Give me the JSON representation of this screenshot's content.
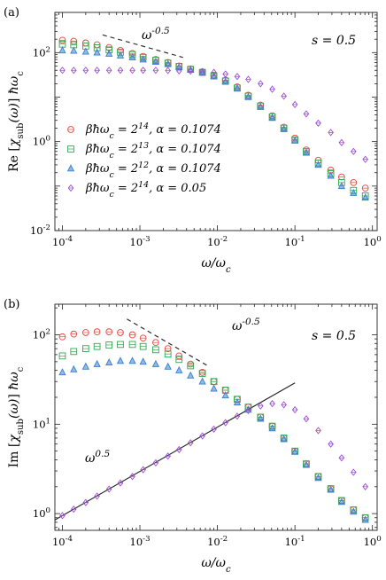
{
  "chart_data": [
    {
      "panel_label": "(a)",
      "type": "scatter",
      "xscale": "log",
      "yscale": "log",
      "xlim": [
        8e-05,
        1.15
      ],
      "ylim": [
        0.01,
        800
      ],
      "xlabel": "ω/ωc",
      "ylabel": "Re[χsub(ω)] ħωc",
      "x_ticks": [
        "10^-4",
        "10^-3",
        "10^-2",
        "10^-1",
        "10^0"
      ],
      "y_ticks": [
        "10^-2",
        "10^0",
        "10^2"
      ],
      "annotations": [
        {
          "text": "s = 0.5",
          "kind": "label"
        },
        {
          "text": "ω^-0.5",
          "kind": "guide-label"
        }
      ],
      "guide_lines": [
        {
          "style": "dashed",
          "x": [
            0.00033,
            0.0036
          ],
          "y": [
            250,
            78
          ]
        }
      ],
      "legend": {
        "position": "center-left"
      },
      "series": [
        {
          "name": "βħωc = 2^14, α = 0.1074",
          "color": "#e8453c",
          "marker": "circle",
          "x": [
            0.0001,
            0.00014,
            0.0002,
            0.00028,
            0.0004,
            0.00056,
            0.0008,
            0.0011,
            0.0016,
            0.0023,
            0.0032,
            0.0045,
            0.0064,
            0.009,
            0.0127,
            0.018,
            0.025,
            0.036,
            0.051,
            0.072,
            0.1,
            0.14,
            0.2,
            0.29,
            0.4,
            0.57,
            0.81
          ],
          "y": [
            190,
            180,
            165,
            150,
            130,
            112,
            96,
            82,
            70,
            60,
            50,
            43,
            37,
            31,
            24,
            17,
            11,
            6.6,
            3.8,
            2.1,
            1.2,
            0.65,
            0.38,
            0.23,
            0.16,
            0.12,
            0.09
          ]
        },
        {
          "name": "βħωc = 2^13, α = 0.1074",
          "color": "#2fa84f",
          "marker": "square",
          "x": [
            0.0001,
            0.00014,
            0.0002,
            0.00028,
            0.0004,
            0.00056,
            0.0008,
            0.0011,
            0.0016,
            0.0023,
            0.0032,
            0.0045,
            0.0064,
            0.009,
            0.0127,
            0.018,
            0.025,
            0.036,
            0.051,
            0.072,
            0.1,
            0.14,
            0.2,
            0.29,
            0.4,
            0.57,
            0.81
          ],
          "y": [
            155,
            150,
            140,
            128,
            115,
            102,
            90,
            78,
            67,
            58,
            49,
            42,
            36,
            30,
            23,
            16,
            10.5,
            6.3,
            3.6,
            2,
            1.1,
            0.6,
            0.33,
            0.19,
            0.12,
            0.08,
            0.06
          ]
        },
        {
          "name": "βħωc = 2^12, α = 0.1074",
          "color": "#3a7fd0",
          "marker": "triangle",
          "x": [
            0.0001,
            0.00014,
            0.0002,
            0.00028,
            0.0004,
            0.00056,
            0.0008,
            0.0011,
            0.0016,
            0.0023,
            0.0032,
            0.0045,
            0.0064,
            0.009,
            0.0127,
            0.018,
            0.025,
            0.036,
            0.051,
            0.072,
            0.1,
            0.14,
            0.2,
            0.29,
            0.4,
            0.57,
            0.81
          ],
          "y": [
            112,
            110,
            105,
            100,
            94,
            86,
            78,
            70,
            62,
            55,
            47,
            41,
            35,
            29,
            22,
            15.5,
            10,
            6,
            3.4,
            1.9,
            1.05,
            0.56,
            0.3,
            0.17,
            0.1,
            0.07,
            0.055
          ]
        },
        {
          "name": "βħωc = 2^14, α = 0.05",
          "color": "#9b4fd1",
          "marker": "diamond",
          "x": [
            0.0001,
            0.00014,
            0.0002,
            0.00028,
            0.0004,
            0.00056,
            0.0008,
            0.0011,
            0.0016,
            0.0023,
            0.0032,
            0.0045,
            0.0064,
            0.009,
            0.0127,
            0.018,
            0.025,
            0.036,
            0.051,
            0.072,
            0.1,
            0.14,
            0.2,
            0.29,
            0.4,
            0.57,
            0.81
          ],
          "y": [
            40,
            40,
            40,
            40,
            40,
            40,
            40,
            40,
            40,
            39.5,
            39,
            38.5,
            37.5,
            36,
            33,
            29,
            25,
            20,
            15,
            10.5,
            6.8,
            4.2,
            2.6,
            1.6,
            0.95,
            0.6,
            0.4
          ]
        }
      ]
    },
    {
      "panel_label": "(b)",
      "type": "scatter",
      "xscale": "log",
      "yscale": "log",
      "xlim": [
        8e-05,
        1.15
      ],
      "ylim": [
        0.65,
        220
      ],
      "xlabel": "ω/ωc",
      "ylabel": "Im[χsub(ω)] ħωc",
      "x_ticks": [
        "10^-4",
        "10^-3",
        "10^-2",
        "10^-1",
        "10^0"
      ],
      "y_ticks": [
        "10^0",
        "10^1",
        "10^2"
      ],
      "annotations": [
        {
          "text": "s = 0.5",
          "kind": "label"
        },
        {
          "text": "ω^-0.5",
          "kind": "guide-label"
        },
        {
          "text": "ω^0.5",
          "kind": "guide-label"
        }
      ],
      "guide_lines": [
        {
          "style": "dashed",
          "x": [
            0.00068,
            0.0075
          ],
          "y": [
            150,
            45
          ]
        },
        {
          "style": "solid",
          "x": [
            8e-05,
            0.1
          ],
          "y": [
            0.85,
            29
          ]
        }
      ],
      "series": [
        {
          "name": "βħωc = 2^14, α = 0.1074",
          "color": "#e8453c",
          "marker": "circle",
          "x": [
            0.0001,
            0.00014,
            0.0002,
            0.00028,
            0.0004,
            0.00056,
            0.0008,
            0.0011,
            0.0016,
            0.0023,
            0.0032,
            0.0045,
            0.0064,
            0.009,
            0.0127,
            0.018,
            0.025,
            0.036,
            0.051,
            0.072,
            0.1,
            0.14,
            0.2,
            0.29,
            0.4,
            0.57,
            0.81
          ],
          "y": [
            95,
            102,
            106,
            108,
            108,
            106,
            100,
            92,
            82,
            70,
            58,
            47,
            38,
            30,
            24,
            19,
            15.5,
            12,
            9.5,
            7,
            5,
            3.6,
            2.6,
            1.9,
            1.4,
            1.1,
            0.9
          ]
        },
        {
          "name": "βħωc = 2^13, α = 0.1074",
          "color": "#2fa84f",
          "marker": "square",
          "x": [
            0.0001,
            0.00014,
            0.0002,
            0.00028,
            0.0004,
            0.00056,
            0.0008,
            0.0011,
            0.0016,
            0.0023,
            0.0032,
            0.0045,
            0.0064,
            0.009,
            0.0127,
            0.018,
            0.025,
            0.036,
            0.051,
            0.072,
            0.1,
            0.14,
            0.2,
            0.29,
            0.4,
            0.57,
            0.81
          ],
          "y": [
            58,
            65,
            70,
            74,
            77,
            78,
            78,
            74,
            68,
            61,
            53,
            45,
            37,
            30,
            24,
            19,
            15.5,
            12,
            9.5,
            7,
            5,
            3.6,
            2.6,
            1.9,
            1.4,
            1.1,
            0.9
          ]
        },
        {
          "name": "βħωc = 2^12, α = 0.1074",
          "color": "#3a7fd0",
          "marker": "triangle",
          "x": [
            0.0001,
            0.00014,
            0.0002,
            0.00028,
            0.0004,
            0.00056,
            0.0008,
            0.0011,
            0.0016,
            0.0023,
            0.0032,
            0.0045,
            0.0064,
            0.009,
            0.0127,
            0.018,
            0.025,
            0.036,
            0.051,
            0.072,
            0.1,
            0.14,
            0.2,
            0.29,
            0.4,
            0.57,
            0.81
          ],
          "y": [
            38,
            41,
            44,
            47,
            49,
            51,
            51,
            50,
            47,
            44,
            40,
            35,
            30,
            25,
            21,
            17.5,
            14.5,
            11.5,
            9,
            6.8,
            4.9,
            3.5,
            2.5,
            1.85,
            1.35,
            1.05,
            0.85
          ]
        },
        {
          "name": "βħωc = 2^14, α = 0.05",
          "color": "#9b4fd1",
          "marker": "diamond",
          "x": [
            0.0001,
            0.00014,
            0.0002,
            0.00028,
            0.0004,
            0.00056,
            0.0008,
            0.0011,
            0.0016,
            0.0023,
            0.0032,
            0.0045,
            0.0064,
            0.009,
            0.0127,
            0.018,
            0.025,
            0.036,
            0.051,
            0.072,
            0.1,
            0.14,
            0.2,
            0.29,
            0.4,
            0.57,
            0.81
          ],
          "y": [
            0.95,
            1.12,
            1.33,
            1.57,
            1.88,
            2.2,
            2.6,
            3.1,
            3.7,
            4.4,
            5.2,
            6.2,
            7.4,
            8.8,
            10.4,
            12.3,
            14.2,
            16,
            17,
            16.5,
            14.5,
            11.5,
            8.5,
            6,
            4.2,
            2.9,
            2
          ]
        }
      ]
    }
  ]
}
